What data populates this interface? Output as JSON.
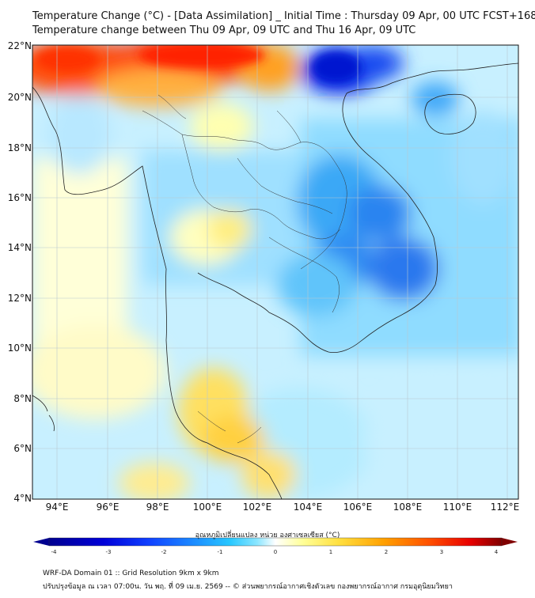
{
  "header": {
    "title_line1": "Temperature Change (°C) - [Data Assimilation] _ Initial Time : Thursday 09 Apr, 00 UTC FCST+168",
    "title_line2": "Temperature change between Thu 09 Apr, 09 UTC and Thu 16 Apr, 09 UTC"
  },
  "map": {
    "lat_labels": [
      "22°N",
      "20°N",
      "18°N",
      "16°N",
      "14°N",
      "12°N",
      "10°N",
      "8°N",
      "6°N",
      "4°N"
    ],
    "lon_labels": [
      "94°E",
      "96°E",
      "98°E",
      "100°E",
      "102°E",
      "104°E",
      "106°E",
      "108°E",
      "110°E",
      "112°E"
    ],
    "background_color": "#ffffff"
  },
  "colorbar": {
    "title": "อุณหภูมิเปลี่ยนแปลง หน่วย องศาเซลเซียส (°C)",
    "ticks": [
      "-4",
      "-3",
      "-2",
      "-1",
      "0",
      "1",
      "2",
      "3",
      "4"
    ],
    "colors": [
      "#000090",
      "#0000d8",
      "#1040ff",
      "#1c8cff",
      "#28c8ff",
      "#8ce6ff",
      "#ffffff",
      "#ffff99",
      "#ffe040",
      "#ffa000",
      "#ff5000",
      "#e80000",
      "#800000"
    ]
  },
  "footer": {
    "line1": "WRF-DA Domain 01 :: Grid Resolution 9km x 9km",
    "line2": "ปรับปรุงข้อมูล ณ เวลา 07:00น. วัน พฤ. ที่ 09 เม.ย. 2569 -- © ส่วนพยากรณ์อากาศเชิงตัวเลข กองพยากรณ์อากาศ กรมอุตุนิยมวิทยา"
  }
}
